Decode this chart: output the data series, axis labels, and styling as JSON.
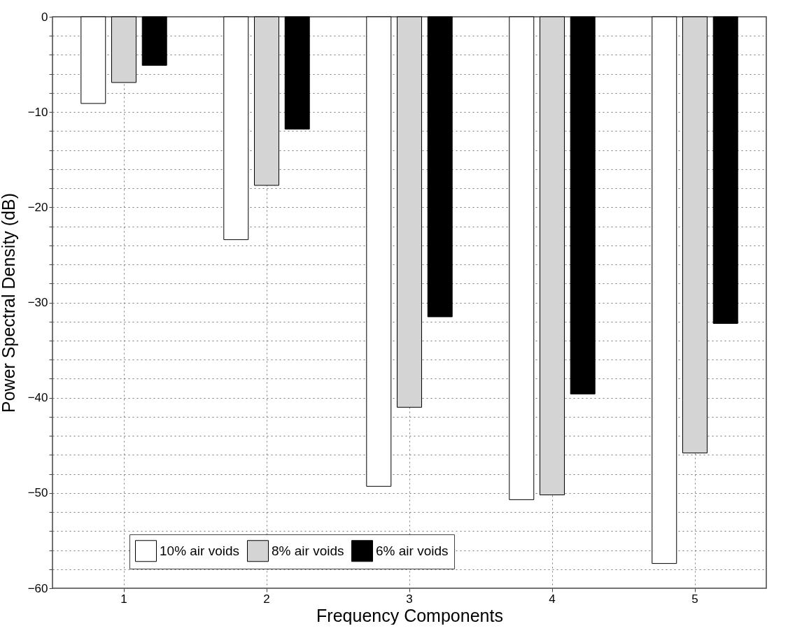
{
  "chart_data": {
    "type": "bar",
    "xlabel": "Frequency Components",
    "ylabel": "Power Spectral Density (dB)",
    "categories": [
      "1",
      "2",
      "3",
      "4",
      "5"
    ],
    "series": [
      {
        "name": "10% air voids",
        "color": "#ffffff",
        "values": [
          -9.1,
          -23.4,
          -49.3,
          -50.7,
          -57.4
        ]
      },
      {
        "name": "8% air voids",
        "color": "#d4d4d4",
        "values": [
          -6.9,
          -17.7,
          -41.0,
          -50.2,
          -45.8
        ]
      },
      {
        "name": "6% air voids",
        "color": "#000000",
        "values": [
          -5.1,
          -11.8,
          -31.5,
          -39.6,
          -32.2
        ]
      }
    ],
    "ylim": [
      -60,
      0
    ],
    "yticks": [
      -60,
      {
        "value": -58,
        "label": null
      },
      {
        "value": -56,
        "label": null
      },
      {
        "value": -54,
        "label": null
      },
      {
        "value": -52,
        "label": null
      },
      -50,
      {
        "value": -48,
        "label": null
      },
      {
        "value": -46,
        "label": null
      },
      {
        "value": -44,
        "label": null
      },
      {
        "value": -42,
        "label": null
      },
      -40,
      {
        "value": -38,
        "label": null
      },
      {
        "value": -36,
        "label": null
      },
      {
        "value": -34,
        "label": null
      },
      {
        "value": -32,
        "label": null
      },
      -30,
      {
        "value": -28,
        "label": null
      },
      {
        "value": -26,
        "label": null
      },
      {
        "value": -24,
        "label": null
      },
      {
        "value": -22,
        "label": null
      },
      -20,
      {
        "value": -18,
        "label": null
      },
      {
        "value": -16,
        "label": null
      },
      {
        "value": -14,
        "label": null
      },
      {
        "value": -12,
        "label": null
      },
      -10,
      {
        "value": -8,
        "label": null
      },
      {
        "value": -6,
        "label": null
      },
      {
        "value": -4,
        "label": null
      },
      {
        "value": -2,
        "label": null
      },
      0
    ],
    "grid": true,
    "legend": "bottom"
  }
}
